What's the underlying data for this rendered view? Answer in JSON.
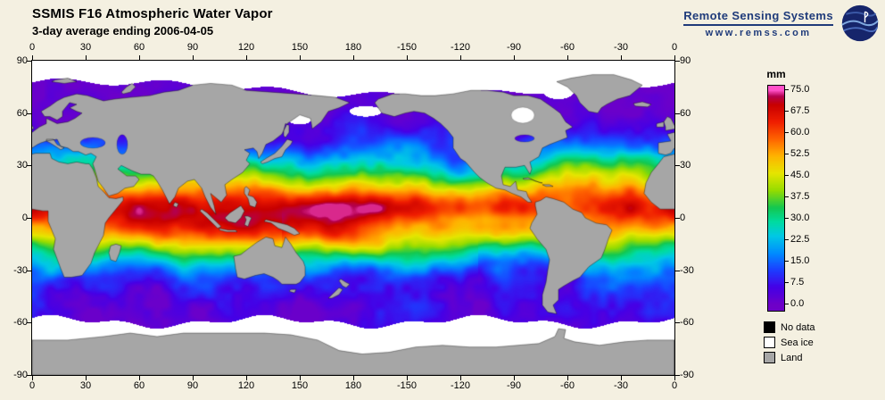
{
  "header": {
    "title": "SSMIS F16 Atmospheric Water Vapor",
    "subtitle": "3-day average ending 2006-04-05"
  },
  "branding": {
    "name": "Remote Sensing Systems",
    "url": "www.remss.com"
  },
  "colorbar": {
    "unit": "mm"
  },
  "axes": {
    "lon_labels": [
      "0",
      "30",
      "60",
      "90",
      "120",
      "150",
      "180",
      "-150",
      "-120",
      "-90",
      "-60",
      "-30",
      "0"
    ],
    "lat_labels": [
      "90",
      "60",
      "30",
      "0",
      "-30",
      "-60",
      "-90"
    ]
  },
  "legend": {
    "items": [
      {
        "label": "No data",
        "color": "#000000"
      },
      {
        "label": "Sea ice",
        "color": "#FFFFFF"
      },
      {
        "label": "Land",
        "color": "#A6A6A6"
      }
    ]
  },
  "chart_data": {
    "type": "heatmap",
    "title": "SSMIS F16 Atmospheric Water Vapor",
    "subtitle": "3-day average ending 2006-04-05",
    "variable": "Columnar atmospheric water vapor",
    "units": "mm",
    "value_range": [
      0,
      75
    ],
    "colorbar_ticks": [
      75.0,
      67.5,
      60.0,
      52.5,
      45.0,
      37.5,
      30.0,
      22.5,
      15.0,
      7.5,
      0.0
    ],
    "x_axis": {
      "name": "longitude",
      "ticks": [
        0,
        30,
        60,
        90,
        120,
        150,
        180,
        -150,
        -120,
        -90,
        -60,
        -30,
        0
      ]
    },
    "y_axis": {
      "name": "latitude",
      "ticks": [
        90,
        60,
        30,
        0,
        -30,
        -60,
        -90
      ]
    },
    "projection": "equirectangular, Pacific-centered, 0E at left and right edges",
    "colormap_stops": [
      [
        0,
        "#6E00C8"
      ],
      [
        6,
        "#4600E6"
      ],
      [
        12,
        "#1E3CFF"
      ],
      [
        18,
        "#008CFF"
      ],
      [
        24,
        "#00C8E6"
      ],
      [
        29,
        "#00DCA0"
      ],
      [
        34,
        "#14C850"
      ],
      [
        40,
        "#96DC00"
      ],
      [
        46,
        "#E6E600"
      ],
      [
        52,
        "#FFB400"
      ],
      [
        58,
        "#FF6400"
      ],
      [
        64,
        "#F01E00"
      ],
      [
        70,
        "#C80000"
      ],
      [
        73,
        "#B40050"
      ],
      [
        75,
        "#FF50C8"
      ]
    ],
    "special_values": [
      {
        "label": "No data",
        "color": "#000000"
      },
      {
        "label": "Sea ice",
        "color": "#FFFFFF"
      },
      {
        "label": "Land",
        "color": "#A6A6A6"
      }
    ],
    "pattern_summary": "Highest vapor (50-70 mm, orange/red) along the ITCZ near 5-8N and over the Indo-Pacific warm pool; yellow/green (25-45 mm) in subtropics; cyan/blue (10-25 mm) in mid-latitudes; purple (<7.5 mm) poleward of ~55 deg; white sea ice at high latitudes and around Antarctica; continents gray."
  }
}
